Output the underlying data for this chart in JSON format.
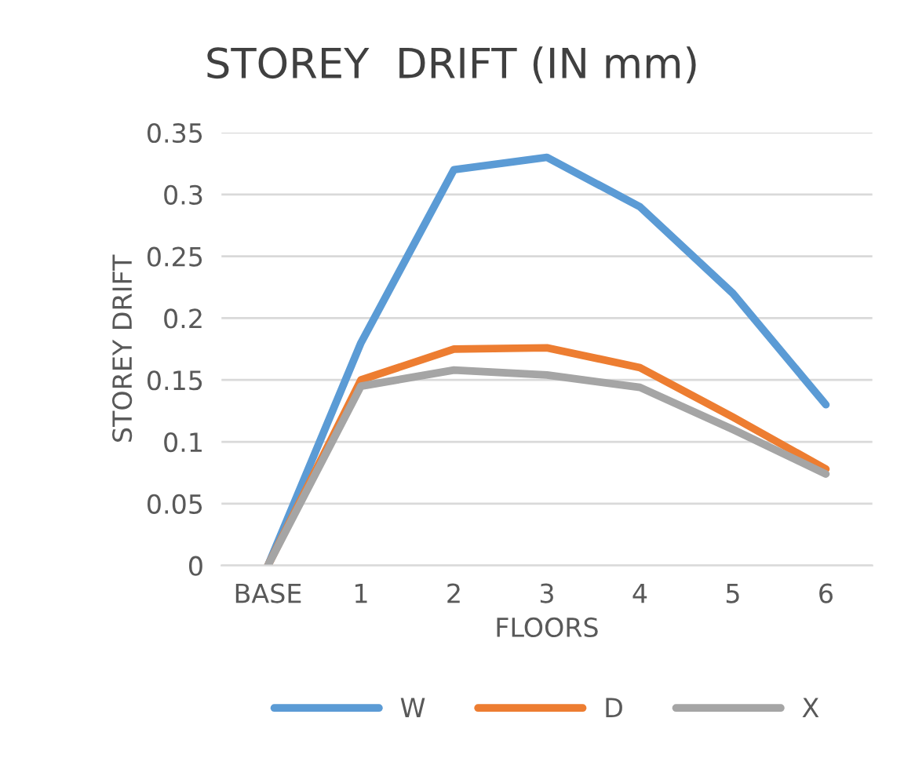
{
  "chart_data": {
    "type": "line",
    "title": "STOREY  DRIFT (IN mm)",
    "xlabel": "FLOORS",
    "ylabel": "STOREY DRIFT",
    "categories": [
      "BASE",
      "1",
      "2",
      "3",
      "4",
      "5",
      "6"
    ],
    "series": [
      {
        "name": "W",
        "color": "#5b9bd5",
        "values": [
          0,
          0.18,
          0.32,
          0.33,
          0.29,
          0.22,
          0.13
        ]
      },
      {
        "name": "D",
        "color": "#ed7d31",
        "values": [
          0,
          0.15,
          0.175,
          0.176,
          0.16,
          0.12,
          0.078
        ]
      },
      {
        "name": "X",
        "color": "#a5a5a5",
        "values": [
          0,
          0.145,
          0.158,
          0.154,
          0.144,
          0.11,
          0.074
        ]
      }
    ],
    "ylim": [
      0,
      0.35
    ],
    "yticks": [
      0,
      0.05,
      0.1,
      0.15,
      0.2,
      0.25,
      0.3,
      0.35
    ],
    "grid": "y",
    "legend": "bottom"
  }
}
